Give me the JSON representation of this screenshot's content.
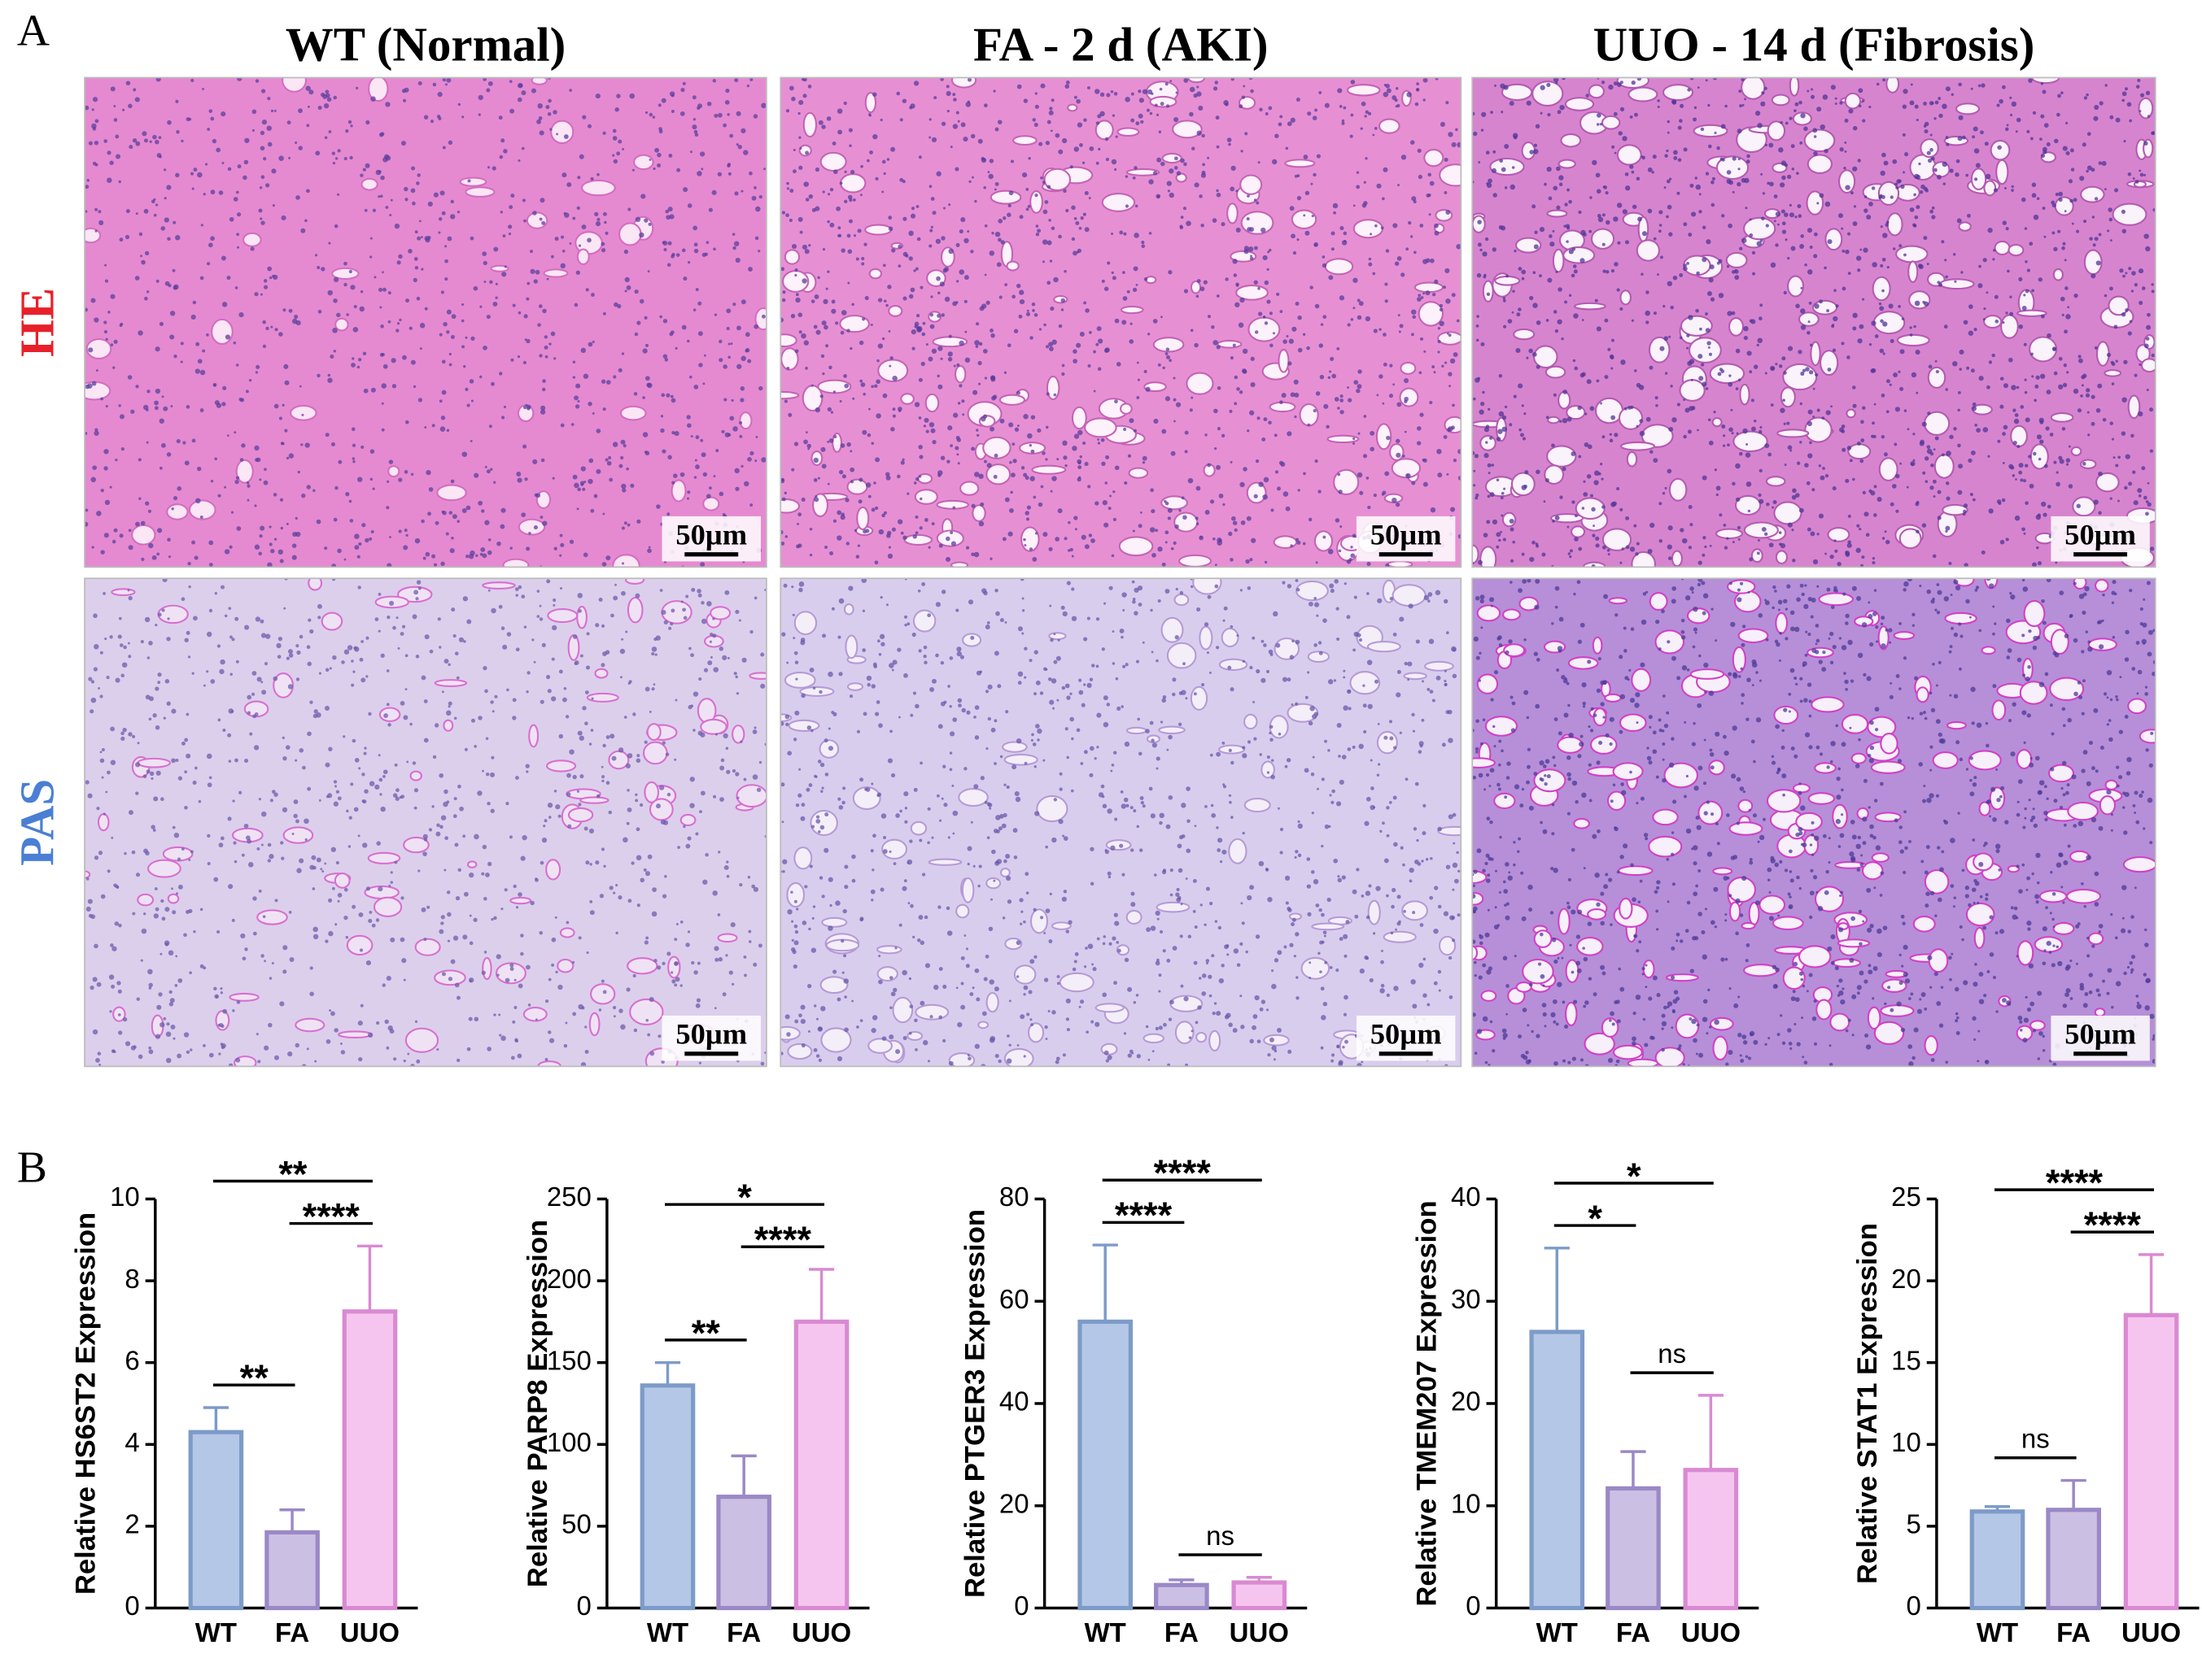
{
  "panel_a": {
    "label": "A",
    "columns": [
      "WT (Normal)",
      "FA - 2 d (AKI)",
      "UUO - 14 d (Fibrosis)"
    ],
    "rows": [
      "HE",
      "PAS"
    ],
    "row_colors": [
      "#e8202a",
      "#4a7fd4"
    ],
    "scale_bar": "50µm"
  },
  "panel_b": {
    "label": "B"
  },
  "chart_data": [
    {
      "type": "bar",
      "y_label": "Relative HS6ST2 Expression",
      "categories": [
        "WT",
        "FA",
        "UUO"
      ],
      "values": [
        4.3,
        1.85,
        7.25
      ],
      "errors": [
        0.6,
        0.55,
        1.6
      ],
      "colors": [
        "#b4c7e7",
        "#cbc0e4",
        "#f6c5ef"
      ],
      "edge_colors": [
        "#7d9bc8",
        "#9b88c6",
        "#d98ad2"
      ],
      "ylim": [
        0,
        10
      ],
      "yticks": [
        0,
        2,
        4,
        6,
        8,
        10
      ],
      "annotations": [
        {
          "text": "**",
          "from": 0,
          "to": 1
        },
        {
          "text": "**",
          "from": 0,
          "to": 2
        },
        {
          "text": "****",
          "from": 1,
          "to": 2
        }
      ]
    },
    {
      "type": "bar",
      "y_label": "Relative PARP8 Expression",
      "categories": [
        "WT",
        "FA",
        "UUO"
      ],
      "values": [
        136,
        68,
        175
      ],
      "errors": [
        14,
        25,
        32
      ],
      "colors": [
        "#b4c7e7",
        "#cbc0e4",
        "#f6c5ef"
      ],
      "edge_colors": [
        "#7d9bc8",
        "#9b88c6",
        "#d98ad2"
      ],
      "ylim": [
        0,
        250
      ],
      "yticks": [
        0,
        50,
        100,
        150,
        200,
        250
      ],
      "annotations": [
        {
          "text": "**",
          "from": 0,
          "to": 1
        },
        {
          "text": "*",
          "from": 0,
          "to": 2
        },
        {
          "text": "****",
          "from": 1,
          "to": 2
        }
      ]
    },
    {
      "type": "bar",
      "y_label": "Relative PTGER3 Expression",
      "categories": [
        "WT",
        "FA",
        "UUO"
      ],
      "values": [
        56,
        4.5,
        5
      ],
      "errors": [
        15,
        1,
        1
      ],
      "colors": [
        "#b4c7e7",
        "#cbc0e4",
        "#f6c5ef"
      ],
      "edge_colors": [
        "#7d9bc8",
        "#9b88c6",
        "#d98ad2"
      ],
      "ylim": [
        0,
        80
      ],
      "yticks": [
        0,
        20,
        40,
        60,
        80
      ],
      "annotations": [
        {
          "text": "****",
          "from": 0,
          "to": 1
        },
        {
          "text": "****",
          "from": 0,
          "to": 2
        },
        {
          "text": "ns",
          "from": 1,
          "to": 2
        }
      ]
    },
    {
      "type": "bar",
      "y_label": "Relative TMEM207 Expression",
      "categories": [
        "WT",
        "FA",
        "UUO"
      ],
      "values": [
        27,
        11.7,
        13.5
      ],
      "errors": [
        8.2,
        3.6,
        7.3
      ],
      "colors": [
        "#b4c7e7",
        "#cbc0e4",
        "#f6c5ef"
      ],
      "edge_colors": [
        "#7d9bc8",
        "#9b88c6",
        "#d98ad2"
      ],
      "ylim": [
        0,
        40
      ],
      "yticks": [
        0,
        10,
        20,
        30,
        40
      ],
      "annotations": [
        {
          "text": "*",
          "from": 0,
          "to": 1
        },
        {
          "text": "*",
          "from": 0,
          "to": 2
        },
        {
          "text": "ns",
          "from": 1,
          "to": 2
        }
      ]
    },
    {
      "type": "bar",
      "y_label": "Relative STAT1 Expression",
      "categories": [
        "WT",
        "FA",
        "UUO"
      ],
      "values": [
        5.9,
        6,
        17.9
      ],
      "errors": [
        0.3,
        1.8,
        3.7
      ],
      "colors": [
        "#b4c7e7",
        "#cbc0e4",
        "#f6c5ef"
      ],
      "edge_colors": [
        "#7d9bc8",
        "#9b88c6",
        "#d98ad2"
      ],
      "ylim": [
        0,
        25
      ],
      "yticks": [
        0,
        5,
        10,
        15,
        20,
        25
      ],
      "annotations": [
        {
          "text": "ns",
          "from": 0,
          "to": 1
        },
        {
          "text": "****",
          "from": 0,
          "to": 2
        },
        {
          "text": "****",
          "from": 1,
          "to": 2
        }
      ]
    }
  ]
}
